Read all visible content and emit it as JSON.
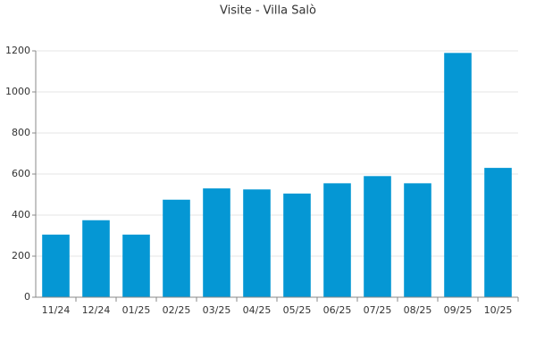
{
  "chart_data": {
    "type": "bar",
    "title": "Visite - Villa Salò",
    "categories": [
      "11/24",
      "12/24",
      "01/25",
      "02/25",
      "03/25",
      "04/25",
      "05/25",
      "06/25",
      "07/25",
      "08/25",
      "09/25",
      "10/25"
    ],
    "values": [
      305,
      375,
      305,
      475,
      530,
      525,
      505,
      555,
      590,
      555,
      1190,
      630
    ],
    "color": "#0597d4",
    "ylim": [
      0,
      1200
    ],
    "yticks": [
      0,
      200,
      400,
      600,
      800,
      1000,
      1200
    ],
    "grid": true
  }
}
